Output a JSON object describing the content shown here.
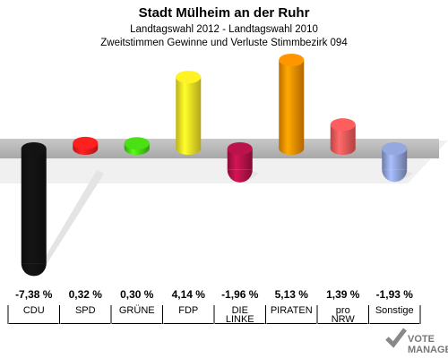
{
  "chart_data": {
    "type": "bar",
    "title": "Stadt Mülheim an der Ruhr",
    "subtitle_1": "Landtagswahl 2012 - Landtagswahl 2010",
    "subtitle_2": "Zweitstimmen Gewinne und Verluste Stimmbezirk 094",
    "categories": [
      {
        "line1": "CDU",
        "line2": ""
      },
      {
        "line1": "SPD",
        "line2": ""
      },
      {
        "line1": "GRÜNE",
        "line2": ""
      },
      {
        "line1": "FDP",
        "line2": ""
      },
      {
        "line1": "DIE",
        "line2": "LINKE"
      },
      {
        "line1": "PIRATEN",
        "line2": ""
      },
      {
        "line1": "pro",
        "line2": "NRW"
      },
      {
        "line1": "Sonstige",
        "line2": ""
      }
    ],
    "values": [
      -7.38,
      0.32,
      0.3,
      4.14,
      -1.96,
      5.13,
      1.39,
      -1.93
    ],
    "value_labels": [
      "-7,38 %",
      "0,32 %",
      "0,30 %",
      "4,14 %",
      "-1,96 %",
      "5,13 %",
      "1,39 %",
      "-1,93 %"
    ],
    "colors": [
      "#111111",
      "#ee1c1c",
      "#44cc11",
      "#eedd22",
      "#aa1144",
      "#ee8800",
      "#ee5555",
      "#8899cc"
    ],
    "ylim": [
      -7.38,
      5.13
    ]
  },
  "logo": {
    "line1": "VOTE",
    "line2": "MANAGER"
  }
}
